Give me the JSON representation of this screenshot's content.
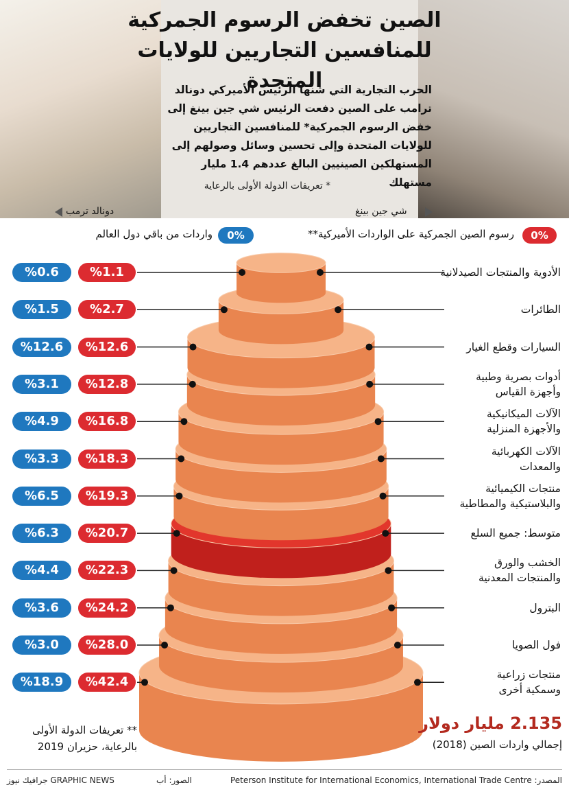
{
  "title_line1": "الصين تخفض الرسوم الجمركية",
  "title_line2": "للمنافسين التجاريين للولايات المتحدة",
  "intro": "الحرب التجارية التي شنها الرئيس الأميركي دونالد ترامب على الصين دفعت الرئيس شي جين بينغ إلى خفض الرسوم الجمركية* للمنافسين التجاريين للولايات المتحدة وإلى تحسين وسائل وصولهم إلى المستهلكين الصينيين البالغ عددهم 1.4 مليار مستهلك",
  "footnote_1": "* تعريفات الدولة الأولى بالرعاية",
  "person_left": "دونالد ترمب",
  "person_right": "شي جين بينغ",
  "legend": {
    "us_pill": "0%",
    "us_label": "رسوم الصين الجمركية على الواردات الأميركية**",
    "world_pill": "0%",
    "world_label": "واردات من باقي دول العالم",
    "us_color": "#dc2b30",
    "world_color": "#1f78bf"
  },
  "chart_data": {
    "type": "bar",
    "categories": [
      "الأدوية والمنتجات الصيدلانية",
      "الطائرات",
      "السيارات وقطع الغيار",
      "أدوات بصرية وطبية وأجهزة القياس",
      "الآلات الميكانيكية والأجهزة المنزلية",
      "الآلات الكهربائية والمعدات",
      "منتجات الكيميائية والبلاستيكية والمطاطية",
      "متوسط: جميع السلع",
      "الخشب والورق والمنتجات المعدنية",
      "البترول",
      "فول الصويا",
      "منتجات زراعية وسمكية أخرى"
    ],
    "series": [
      {
        "name": "رسوم الصين الجمركية على الواردات الأميركية**",
        "values": [
          1.1,
          2.7,
          12.6,
          12.8,
          16.8,
          18.3,
          19.3,
          20.7,
          22.3,
          24.2,
          28.0,
          42.4
        ]
      },
      {
        "name": "واردات من باقي دول العالم",
        "values": [
          0.6,
          1.5,
          12.6,
          3.1,
          4.9,
          3.3,
          6.5,
          6.3,
          4.4,
          3.6,
          3.0,
          18.9
        ]
      }
    ],
    "display_us": [
      "%1.1",
      "%2.7",
      "%12.6",
      "%12.8",
      "%16.8",
      "%18.3",
      "%19.3",
      "%20.7",
      "%22.3",
      "%24.2",
      "%28.0",
      "%42.4"
    ],
    "display_world": [
      "%0.6",
      "%1.5",
      "%12.6",
      "%3.1",
      "%4.9",
      "%3.3",
      "%6.5",
      "%6.3",
      "%4.4",
      "%3.6",
      "%3.0",
      "%18.9"
    ],
    "label_lines": [
      [
        "الأدوية والمنتجات الصيدلانية"
      ],
      [
        "الطائرات"
      ],
      [
        "السيارات وقطع الغيار"
      ],
      [
        "أدوات بصرية وطبية",
        "وأجهزة القياس"
      ],
      [
        "الآلات الميكانيكية",
        "والأجهزة المنزلية"
      ],
      [
        "الآلات الكهربائية",
        "والمعدات"
      ],
      [
        "منتجات الكيميائية",
        "والبلاستيكية والمطاطية"
      ],
      [
        "متوسط: جميع السلع"
      ],
      [
        "الخشب والورق",
        "والمنتجات المعدنية"
      ],
      [
        "البترول"
      ],
      [
        "فول الصويا"
      ],
      [
        "منتجات زراعية",
        "وسمكية أخرى"
      ]
    ],
    "highlight_index": 7,
    "colors": {
      "tier": "#f3a774",
      "tier_top": "#f6b488",
      "tier_side": "#e9854f",
      "highlight": "#e2362c",
      "highlight_side": "#c0201c"
    }
  },
  "total_value": "2.135 مليار دولار",
  "total_label": "إجمالي واردات الصين (2018)",
  "footnote_2_line1": "** تعريفات الدولة الأولى",
  "footnote_2_line2": "بالرعاية، حزيران 2019",
  "source": "المصدر: Peterson Institute for International Economics, International Trade Centre",
  "photos": "الصور: أب",
  "publisher": "جرافيك نيوز GRAPHIC NEWS"
}
